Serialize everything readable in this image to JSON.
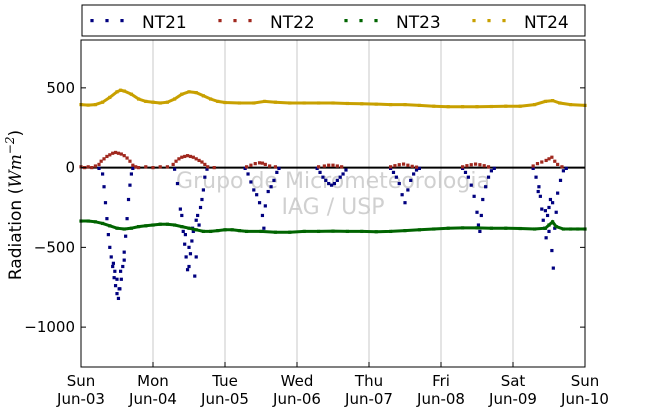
{
  "chart_data": {
    "type": "scatter",
    "ylabel_main": "Radiation (",
    "ylabel_unit": "Wm",
    "ylabel_exp": "−2",
    "ylabel_close": ")",
    "xlabel": "",
    "title": "",
    "ylim": [
      -1250,
      800
    ],
    "xlim": [
      0,
      7
    ],
    "y_ticks": [
      {
        "value": 500,
        "label": "500"
      },
      {
        "value": 0,
        "label": "0"
      },
      {
        "value": -500,
        "label": "−500"
      },
      {
        "value": -1000,
        "label": "−1000"
      }
    ],
    "x_ticks": [
      {
        "value": 0,
        "day": "Sun",
        "date": "Jun-03"
      },
      {
        "value": 1,
        "day": "Mon",
        "date": "Jun-04"
      },
      {
        "value": 2,
        "day": "Tue",
        "date": "Jun-05"
      },
      {
        "value": 3,
        "day": "Wed",
        "date": "Jun-06"
      },
      {
        "value": 4,
        "day": "Thu",
        "date": "Jun-07"
      },
      {
        "value": 5,
        "day": "Fri",
        "date": "Jun-08"
      },
      {
        "value": 6,
        "day": "Sat",
        "date": "Jun-09"
      },
      {
        "value": 7,
        "day": "Sun",
        "date": "Jun-10"
      }
    ],
    "grid": "vertical",
    "legend_placement": "top",
    "series": [
      {
        "name": "NT21",
        "color": "#00007f",
        "points": [
          [
            0.25,
            -5
          ],
          [
            0.3,
            -40
          ],
          [
            0.32,
            -120
          ],
          [
            0.34,
            -220
          ],
          [
            0.36,
            -320
          ],
          [
            0.38,
            -420
          ],
          [
            0.4,
            -500
          ],
          [
            0.42,
            -560
          ],
          [
            0.44,
            -620
          ],
          [
            0.46,
            -690
          ],
          [
            0.48,
            -740
          ],
          [
            0.5,
            -790
          ],
          [
            0.52,
            -820
          ],
          [
            0.54,
            -760
          ],
          [
            0.56,
            -700
          ],
          [
            0.58,
            -620
          ],
          [
            0.6,
            -530
          ],
          [
            0.62,
            -430
          ],
          [
            0.64,
            -320
          ],
          [
            0.66,
            -200
          ],
          [
            0.68,
            -110
          ],
          [
            0.7,
            -40
          ],
          [
            0.72,
            -5
          ],
          [
            0.45,
            -600
          ],
          [
            0.5,
            -700
          ],
          [
            0.55,
            -650
          ],
          [
            0.6,
            -580
          ],
          [
            0.47,
            -650
          ],
          [
            0.53,
            -760
          ],
          [
            1.3,
            -10
          ],
          [
            1.34,
            -100
          ],
          [
            1.38,
            -260
          ],
          [
            1.42,
            -400
          ],
          [
            1.44,
            -480
          ],
          [
            1.46,
            -560
          ],
          [
            1.48,
            -640
          ],
          [
            1.5,
            -620
          ],
          [
            1.52,
            -540
          ],
          [
            1.54,
            -460
          ],
          [
            1.56,
            -400
          ],
          [
            1.58,
            -680
          ],
          [
            1.6,
            -560
          ],
          [
            1.62,
            -300
          ],
          [
            1.64,
            -360
          ],
          [
            1.66,
            -250
          ],
          [
            1.68,
            -200
          ],
          [
            1.7,
            -140
          ],
          [
            1.72,
            -60
          ],
          [
            1.75,
            -10
          ],
          [
            1.4,
            -300
          ],
          [
            1.45,
            -420
          ],
          [
            1.5,
            -500
          ],
          [
            1.55,
            -380
          ],
          [
            1.6,
            -330
          ],
          [
            2.28,
            -5
          ],
          [
            2.32,
            -40
          ],
          [
            2.36,
            -90
          ],
          [
            2.4,
            -140
          ],
          [
            2.44,
            -170
          ],
          [
            2.48,
            -220
          ],
          [
            2.52,
            -300
          ],
          [
            2.54,
            -380
          ],
          [
            2.56,
            -240
          ],
          [
            2.6,
            -150
          ],
          [
            2.64,
            -120
          ],
          [
            2.68,
            -80
          ],
          [
            2.72,
            -30
          ],
          [
            2.75,
            -5
          ],
          [
            3.28,
            -5
          ],
          [
            3.32,
            -30
          ],
          [
            3.36,
            -60
          ],
          [
            3.4,
            -80
          ],
          [
            3.44,
            -100
          ],
          [
            3.48,
            -110
          ],
          [
            3.52,
            -100
          ],
          [
            3.56,
            -80
          ],
          [
            3.6,
            -60
          ],
          [
            3.64,
            -40
          ],
          [
            3.68,
            -15
          ],
          [
            4.3,
            -5
          ],
          [
            4.34,
            -30
          ],
          [
            4.38,
            -60
          ],
          [
            4.42,
            -100
          ],
          [
            4.46,
            -170
          ],
          [
            4.5,
            -220
          ],
          [
            4.54,
            -140
          ],
          [
            4.58,
            -80
          ],
          [
            4.62,
            -40
          ],
          [
            4.66,
            -15
          ],
          [
            4.7,
            -5
          ],
          [
            5.3,
            -5
          ],
          [
            5.34,
            -30
          ],
          [
            5.38,
            -60
          ],
          [
            5.42,
            -110
          ],
          [
            5.46,
            -180
          ],
          [
            5.5,
            -280
          ],
          [
            5.52,
            -360
          ],
          [
            5.54,
            -400
          ],
          [
            5.56,
            -300
          ],
          [
            5.58,
            -200
          ],
          [
            5.62,
            -120
          ],
          [
            5.66,
            -60
          ],
          [
            5.7,
            -20
          ],
          [
            5.74,
            -5
          ],
          [
            6.28,
            -5
          ],
          [
            6.32,
            -60
          ],
          [
            6.36,
            -120
          ],
          [
            6.38,
            -180
          ],
          [
            6.4,
            -260
          ],
          [
            6.42,
            -330
          ],
          [
            6.44,
            -380
          ],
          [
            6.46,
            -440
          ],
          [
            6.48,
            -300
          ],
          [
            6.5,
            -250
          ],
          [
            6.52,
            -200
          ],
          [
            6.54,
            -520
          ],
          [
            6.56,
            -630
          ],
          [
            6.58,
            -380
          ],
          [
            6.6,
            -280
          ],
          [
            6.62,
            -160
          ],
          [
            6.66,
            -80
          ],
          [
            6.7,
            -20
          ],
          [
            6.74,
            -5
          ],
          [
            6.35,
            -150
          ],
          [
            6.45,
            -270
          ],
          [
            6.5,
            -400
          ],
          [
            6.55,
            -220
          ]
        ]
      },
      {
        "name": "NT22",
        "color": "#a0281e",
        "points": [
          [
            0.0,
            5
          ],
          [
            0.05,
            0
          ],
          [
            0.1,
            5
          ],
          [
            0.15,
            0
          ],
          [
            0.2,
            10
          ],
          [
            0.25,
            20
          ],
          [
            0.28,
            40
          ],
          [
            0.32,
            55
          ],
          [
            0.36,
            70
          ],
          [
            0.4,
            80
          ],
          [
            0.44,
            90
          ],
          [
            0.48,
            95
          ],
          [
            0.52,
            90
          ],
          [
            0.56,
            85
          ],
          [
            0.6,
            75
          ],
          [
            0.64,
            60
          ],
          [
            0.68,
            40
          ],
          [
            0.72,
            15
          ],
          [
            0.76,
            5
          ],
          [
            0.8,
            0
          ],
          [
            0.9,
            5
          ],
          [
            1.0,
            0
          ],
          [
            1.1,
            5
          ],
          [
            1.2,
            5
          ],
          [
            1.28,
            20
          ],
          [
            1.32,
            40
          ],
          [
            1.36,
            55
          ],
          [
            1.4,
            65
          ],
          [
            1.44,
            70
          ],
          [
            1.48,
            75
          ],
          [
            1.52,
            70
          ],
          [
            1.56,
            65
          ],
          [
            1.6,
            55
          ],
          [
            1.64,
            45
          ],
          [
            1.68,
            35
          ],
          [
            1.72,
            20
          ],
          [
            1.76,
            5
          ],
          [
            1.85,
            0
          ],
          [
            2.3,
            5
          ],
          [
            2.36,
            15
          ],
          [
            2.42,
            25
          ],
          [
            2.48,
            30
          ],
          [
            2.52,
            28
          ],
          [
            2.56,
            20
          ],
          [
            2.62,
            10
          ],
          [
            2.7,
            5
          ],
          [
            3.3,
            5
          ],
          [
            3.38,
            10
          ],
          [
            3.44,
            15
          ],
          [
            3.5,
            15
          ],
          [
            3.56,
            10
          ],
          [
            3.62,
            5
          ],
          [
            4.3,
            5
          ],
          [
            4.36,
            12
          ],
          [
            4.42,
            18
          ],
          [
            4.48,
            22
          ],
          [
            4.54,
            15
          ],
          [
            4.6,
            8
          ],
          [
            4.66,
            3
          ],
          [
            5.3,
            5
          ],
          [
            5.36,
            12
          ],
          [
            5.42,
            18
          ],
          [
            5.48,
            22
          ],
          [
            5.54,
            18
          ],
          [
            5.6,
            12
          ],
          [
            5.66,
            5
          ],
          [
            6.28,
            10
          ],
          [
            6.34,
            25
          ],
          [
            6.4,
            35
          ],
          [
            6.46,
            45
          ],
          [
            6.5,
            55
          ],
          [
            6.54,
            65
          ],
          [
            6.58,
            40
          ],
          [
            6.62,
            20
          ],
          [
            6.68,
            5
          ]
        ]
      },
      {
        "name": "NT23",
        "color": "#006400",
        "points": [
          [
            0.0,
            -335
          ],
          [
            0.1,
            -335
          ],
          [
            0.2,
            -340
          ],
          [
            0.3,
            -350
          ],
          [
            0.4,
            -365
          ],
          [
            0.5,
            -380
          ],
          [
            0.6,
            -385
          ],
          [
            0.7,
            -380
          ],
          [
            0.8,
            -370
          ],
          [
            0.9,
            -365
          ],
          [
            1.0,
            -360
          ],
          [
            1.1,
            -355
          ],
          [
            1.2,
            -355
          ],
          [
            1.3,
            -360
          ],
          [
            1.4,
            -370
          ],
          [
            1.5,
            -380
          ],
          [
            1.6,
            -390
          ],
          [
            1.7,
            -400
          ],
          [
            1.8,
            -400
          ],
          [
            1.9,
            -395
          ],
          [
            2.0,
            -390
          ],
          [
            2.1,
            -390
          ],
          [
            2.2,
            -395
          ],
          [
            2.3,
            -400
          ],
          [
            2.5,
            -400
          ],
          [
            2.7,
            -405
          ],
          [
            2.9,
            -405
          ],
          [
            3.1,
            -400
          ],
          [
            3.3,
            -400
          ],
          [
            3.5,
            -398
          ],
          [
            3.7,
            -400
          ],
          [
            3.9,
            -400
          ],
          [
            4.1,
            -402
          ],
          [
            4.3,
            -400
          ],
          [
            4.5,
            -395
          ],
          [
            4.7,
            -390
          ],
          [
            4.9,
            -385
          ],
          [
            5.1,
            -380
          ],
          [
            5.3,
            -378
          ],
          [
            5.5,
            -378
          ],
          [
            5.7,
            -380
          ],
          [
            5.9,
            -380
          ],
          [
            6.1,
            -382
          ],
          [
            6.3,
            -385
          ],
          [
            6.45,
            -380
          ],
          [
            6.5,
            -360
          ],
          [
            6.55,
            -340
          ],
          [
            6.6,
            -370
          ],
          [
            6.7,
            -385
          ],
          [
            6.8,
            -385
          ],
          [
            6.9,
            -385
          ],
          [
            7.0,
            -385
          ]
        ]
      },
      {
        "name": "NT24",
        "color": "#c8a000",
        "points": [
          [
            0.0,
            395
          ],
          [
            0.1,
            392
          ],
          [
            0.2,
            395
          ],
          [
            0.3,
            410
          ],
          [
            0.4,
            440
          ],
          [
            0.5,
            475
          ],
          [
            0.55,
            485
          ],
          [
            0.6,
            480
          ],
          [
            0.7,
            460
          ],
          [
            0.8,
            430
          ],
          [
            0.9,
            415
          ],
          [
            1.0,
            410
          ],
          [
            1.1,
            405
          ],
          [
            1.2,
            410
          ],
          [
            1.3,
            430
          ],
          [
            1.4,
            460
          ],
          [
            1.5,
            475
          ],
          [
            1.6,
            470
          ],
          [
            1.7,
            450
          ],
          [
            1.8,
            430
          ],
          [
            1.9,
            415
          ],
          [
            2.0,
            408
          ],
          [
            2.2,
            405
          ],
          [
            2.4,
            405
          ],
          [
            2.55,
            415
          ],
          [
            2.7,
            410
          ],
          [
            2.9,
            405
          ],
          [
            3.1,
            405
          ],
          [
            3.3,
            405
          ],
          [
            3.5,
            405
          ],
          [
            3.7,
            402
          ],
          [
            3.9,
            400
          ],
          [
            4.1,
            398
          ],
          [
            4.3,
            395
          ],
          [
            4.5,
            395
          ],
          [
            4.7,
            390
          ],
          [
            4.9,
            385
          ],
          [
            5.1,
            382
          ],
          [
            5.3,
            382
          ],
          [
            5.5,
            382
          ],
          [
            5.7,
            383
          ],
          [
            5.9,
            385
          ],
          [
            6.1,
            385
          ],
          [
            6.3,
            395
          ],
          [
            6.45,
            415
          ],
          [
            6.55,
            420
          ],
          [
            6.65,
            405
          ],
          [
            6.8,
            395
          ],
          [
            7.0,
            390
          ]
        ]
      }
    ]
  },
  "watermark": {
    "line1": "Grupo de Micrometeorologia",
    "line2": "IAG / USP"
  }
}
